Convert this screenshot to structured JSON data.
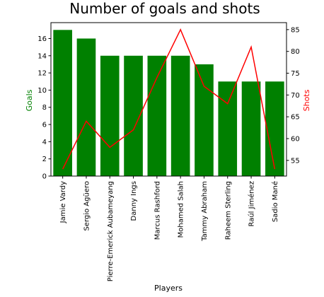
{
  "chart_data": {
    "type": "bar",
    "title": "Number of goals and shots",
    "xlabel": "Players",
    "categories": [
      "Jamie Vardy",
      "Sergio Agüero",
      "Pierre-Emerick Aubameyang",
      "Danny Ings",
      "Marcus Rashford",
      "Mohamed Salah",
      "Tammy Abraham",
      "Raheem Sterling",
      "Raúl Jiménez",
      "Sadio Mané"
    ],
    "series": [
      {
        "name": "Goals",
        "type": "bar",
        "axis": "left",
        "color": "#008000",
        "values": [
          17,
          16,
          14,
          14,
          14,
          14,
          13,
          11,
          11,
          11
        ]
      },
      {
        "name": "Shots",
        "type": "line",
        "axis": "right",
        "color": "#ff0000",
        "values": [
          53,
          64,
          58,
          62,
          74,
          85,
          72,
          68,
          81,
          53
        ]
      }
    ],
    "ylabel_left": "Goals",
    "ylabel_right": "Shots",
    "ylim_left": [
      0,
      17.85
    ],
    "ylim_right": [
      51.4,
      86.6
    ],
    "yticks_left": [
      0,
      2,
      4,
      6,
      8,
      10,
      12,
      14,
      16
    ],
    "yticks_right": [
      55,
      60,
      65,
      70,
      75,
      80,
      85
    ],
    "grid": false
  }
}
